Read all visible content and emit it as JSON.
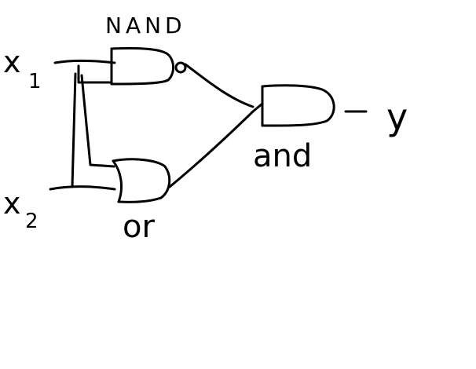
{
  "colors": {
    "ink": "#000000",
    "background": "#ffffff"
  },
  "labels": {
    "nand": "NAND",
    "and": "and",
    "or": "or",
    "x1_letter": "x",
    "x1_sub": "1",
    "x2_letter": "x",
    "x2_sub": "2",
    "output": "y"
  }
}
